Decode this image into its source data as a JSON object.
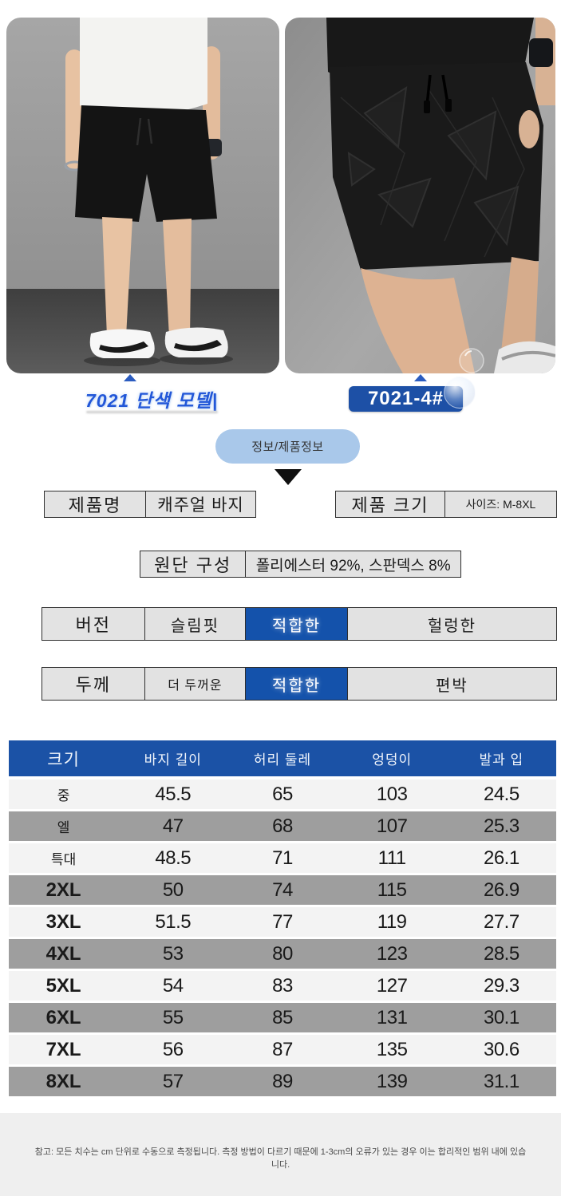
{
  "photos": {
    "left_caption": "7021 단색 모델|",
    "right_badge": "7021-4#"
  },
  "info_button": {
    "label": "정보/제품정보"
  },
  "specs": {
    "name": {
      "label": "제품명",
      "value": "캐주얼 바지"
    },
    "size": {
      "label": "제품 크기",
      "value": "사이즈: M-8XL"
    },
    "fabric": {
      "label": "원단 구성",
      "value": "폴리에스터 92%, 스판덱스 8%"
    },
    "fit": {
      "label": "버전",
      "options": [
        "슬림핏",
        "적합한",
        "헐렁한"
      ],
      "selected": "적합한"
    },
    "thickness": {
      "label": "두께",
      "options": [
        "더 두꺼운",
        "적합한",
        "편박"
      ],
      "selected": "적합한"
    }
  },
  "size_table": {
    "headers": [
      "크기",
      "바지 길이",
      "허리 둘레",
      "엉덩이",
      "발과 입"
    ],
    "rows": [
      [
        "중",
        "45.5",
        "65",
        "103",
        "24.5"
      ],
      [
        "엘",
        "47",
        "68",
        "107",
        "25.3"
      ],
      [
        "특대",
        "48.5",
        "71",
        "111",
        "26.1"
      ],
      [
        "2XL",
        "50",
        "74",
        "115",
        "26.9"
      ],
      [
        "3XL",
        "51.5",
        "77",
        "119",
        "27.7"
      ],
      [
        "4XL",
        "53",
        "80",
        "123",
        "28.5"
      ],
      [
        "5XL",
        "54",
        "83",
        "127",
        "29.3"
      ],
      [
        "6XL",
        "55",
        "85",
        "131",
        "30.1"
      ],
      [
        "7XL",
        "56",
        "87",
        "135",
        "30.6"
      ],
      [
        "8XL",
        "57",
        "89",
        "139",
        "31.1"
      ]
    ],
    "unit": "cm"
  },
  "footnote": "참고: 모든 치수는 cm 단위로 수동으로 측정됩니다. 측정 방법이 다르기 때문에 1-3cm의 오류가 있는 경우 이는 합리적인 범위 내에 있습니다.",
  "colors": {
    "primary_blue": "#1b52a6",
    "selected_blue": "#1452ab",
    "badge_blue": "#1d50a6",
    "pill_blue": "#a9c8ea",
    "caption_blue": "#2257d8",
    "row_gray": "#9e9e9e",
    "row_light": "#f3f3f3",
    "footer_gray": "#efefef"
  }
}
